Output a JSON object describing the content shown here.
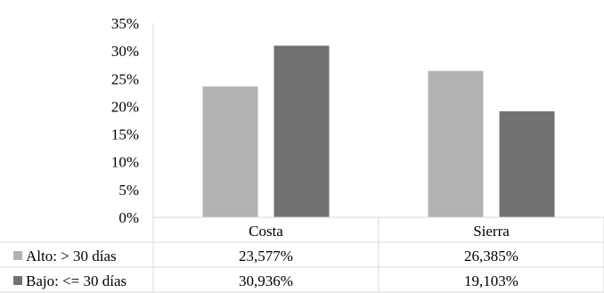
{
  "chart_data": {
    "type": "bar",
    "categories": [
      "Costa",
      "Sierra"
    ],
    "series": [
      {
        "name": "Alto: > 30 días",
        "values": [
          23.577,
          26.385
        ],
        "labels": [
          "23,577%",
          "26,385%"
        ],
        "color": "#b1b3b3"
      },
      {
        "name": "Bajo: <= 30 días",
        "values": [
          30.936,
          19.103
        ],
        "labels": [
          "30,936%",
          "19,103%"
        ],
        "color": "#6f7173"
      }
    ],
    "yticks": [
      "0%",
      "5%",
      "10%",
      "15%",
      "20%",
      "25%",
      "30%",
      "35%"
    ],
    "ylim": [
      0,
      35
    ],
    "data_table": true,
    "gridlines": false,
    "title": ""
  }
}
